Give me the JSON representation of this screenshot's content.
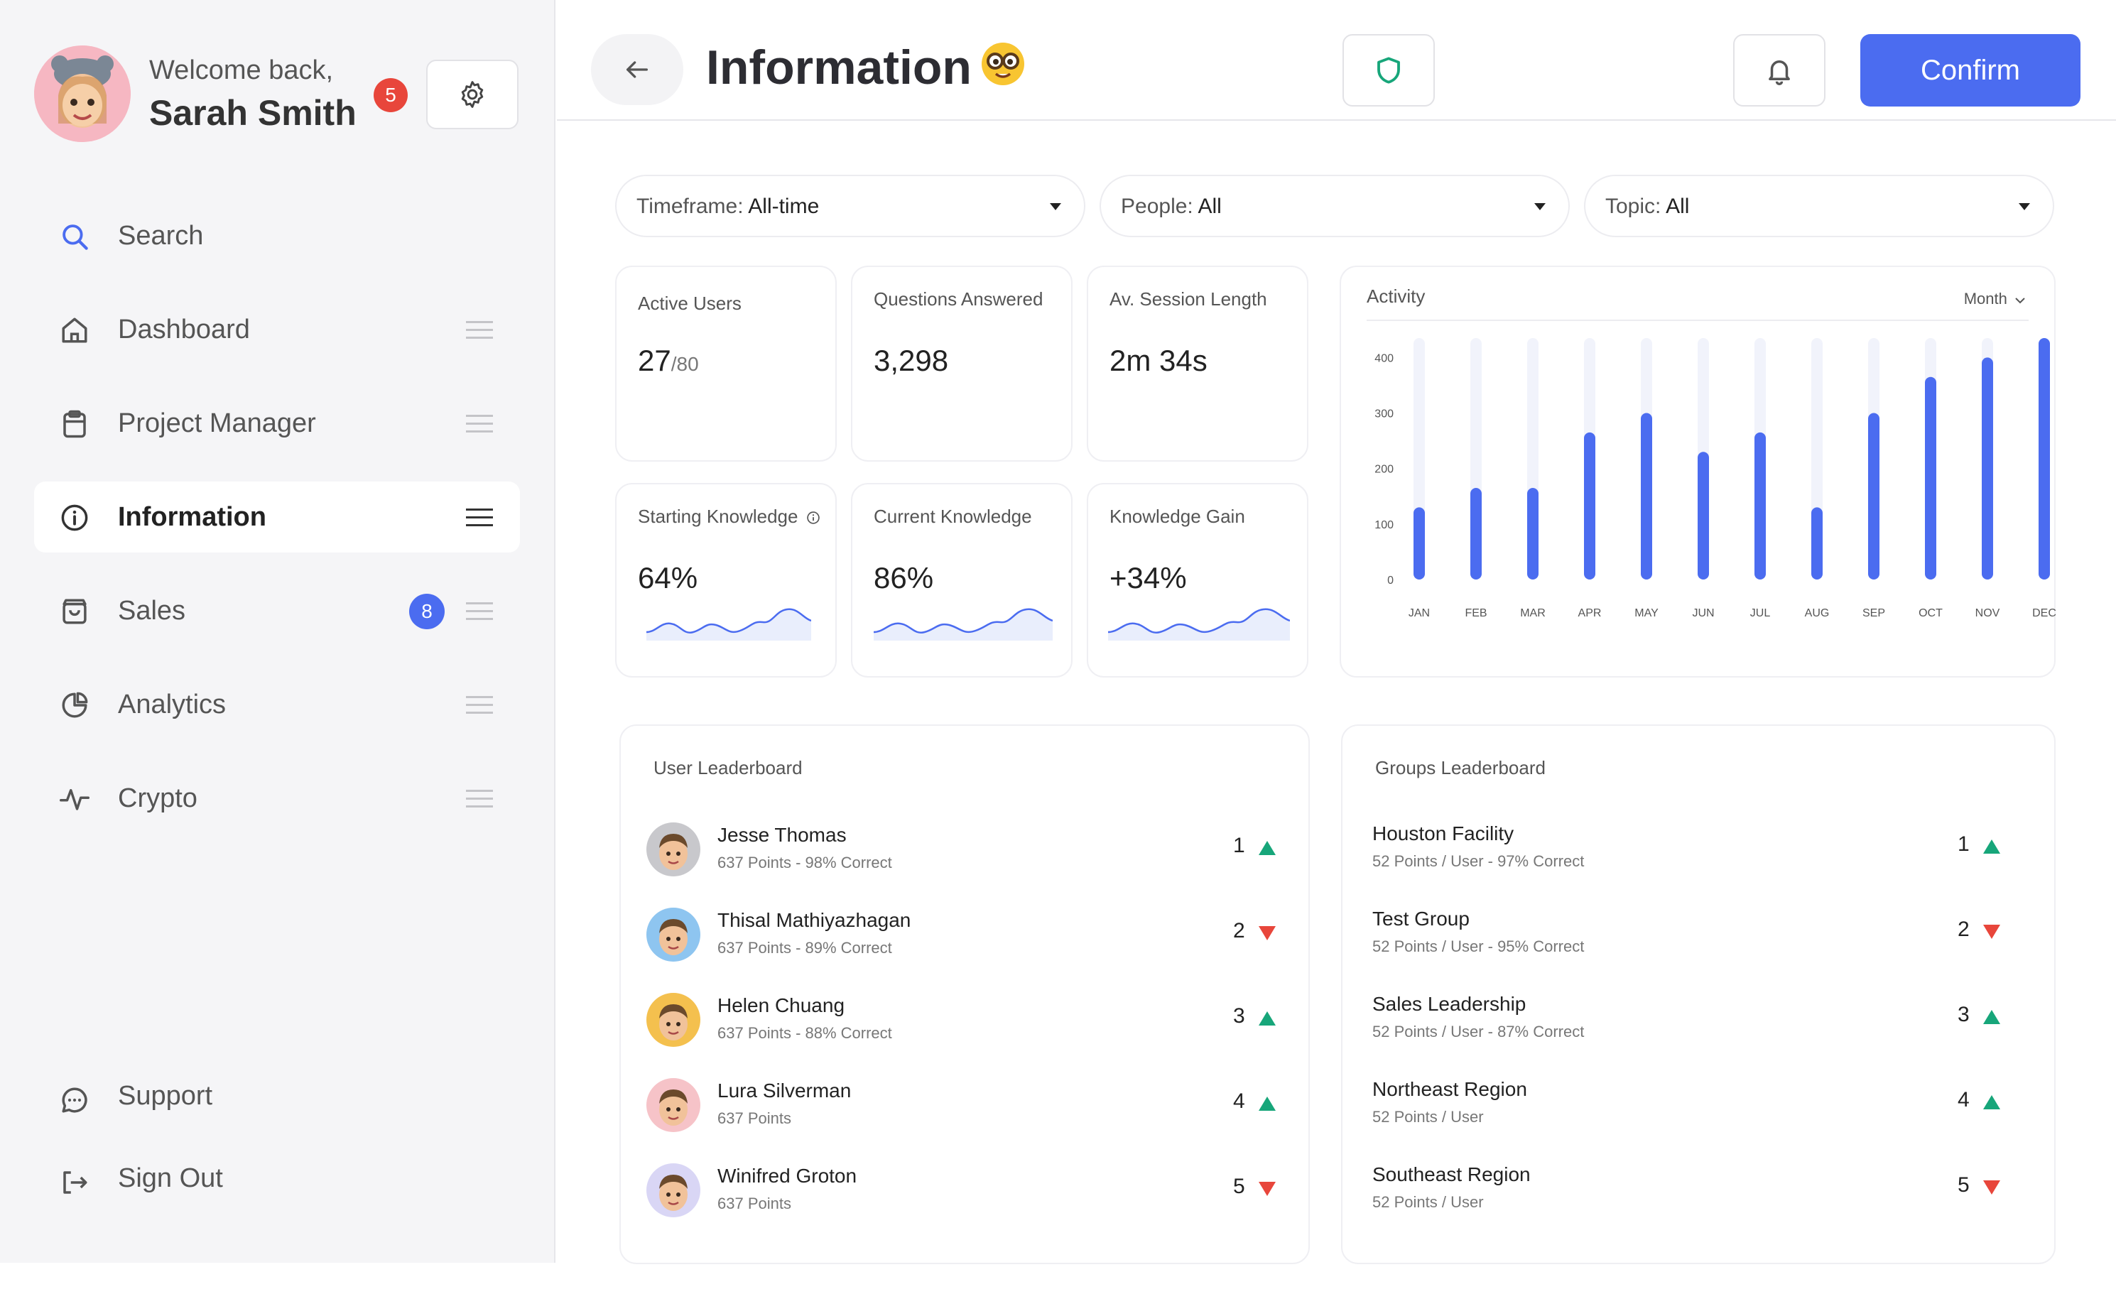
{
  "profile": {
    "welcome": "Welcome back,",
    "name": "Sarah Smith",
    "notification_count": "5"
  },
  "nav": {
    "items": [
      {
        "label": "Search",
        "icon": "search-icon"
      },
      {
        "label": "Dashboard",
        "icon": "home-icon"
      },
      {
        "label": "Project Manager",
        "icon": "clipboard-icon"
      },
      {
        "label": "Information",
        "icon": "info-icon",
        "active": true
      },
      {
        "label": "Sales",
        "icon": "shopping-bag-icon",
        "badge": "8"
      },
      {
        "label": "Analytics",
        "icon": "pie-chart-icon"
      },
      {
        "label": "Crypto",
        "icon": "activity-icon"
      }
    ],
    "bottom": [
      {
        "label": "Support",
        "icon": "chat-icon"
      },
      {
        "label": "Sign Out",
        "icon": "sign-out-icon"
      }
    ]
  },
  "header": {
    "title": "Information",
    "emoji": "nerd-face-emoji",
    "confirm_label": "Confirm"
  },
  "filters": [
    {
      "label": "Timeframe:",
      "value": "All-time"
    },
    {
      "label": "People:",
      "value": "All"
    },
    {
      "label": "Topic:",
      "value": "All"
    }
  ],
  "stats": {
    "active_users": {
      "label": "Active Users",
      "value": "27",
      "denominator": "/80"
    },
    "questions_answered": {
      "label": "Questions Answered",
      "value": "3,298"
    },
    "session_length": {
      "label": "Av. Session Length",
      "value": "2m 34s"
    },
    "starting_knowledge": {
      "label": "Starting Knowledge",
      "value": "64%"
    },
    "current_knowledge": {
      "label": "Current Knowledge",
      "value": "86%"
    },
    "knowledge_gain": {
      "label": "Knowledge Gain",
      "value": "+34%"
    }
  },
  "activity": {
    "title": "Activity",
    "range_label": "Month",
    "accent_color": "#4b6cf0",
    "track_color": "#f1f3fb"
  },
  "chart_data": {
    "type": "bar",
    "title": "Activity",
    "categories": [
      "JAN",
      "FEB",
      "MAR",
      "APR",
      "MAY",
      "JUN",
      "JUL",
      "AUG",
      "SEP",
      "OCT",
      "NOV",
      "DEC"
    ],
    "values": [
      130,
      165,
      165,
      265,
      300,
      230,
      265,
      130,
      300,
      365,
      400,
      435
    ],
    "yticks": [
      0,
      100,
      200,
      300,
      400
    ],
    "ylim": [
      0,
      435
    ],
    "grid": false,
    "legend": false
  },
  "user_leaderboard": {
    "title": "User Leaderboard",
    "rows": [
      {
        "name": "Jesse Thomas",
        "sub": "637 Points - 98% Correct",
        "rank": "1",
        "trend": "up",
        "avatar_color": "#c8c8cc"
      },
      {
        "name": "Thisal Mathiyazhagan",
        "sub": "637 Points - 89% Correct",
        "rank": "2",
        "trend": "down",
        "avatar_color": "#8ec5f0"
      },
      {
        "name": "Helen Chuang",
        "sub": "637 Points - 88% Correct",
        "rank": "3",
        "trend": "up",
        "avatar_color": "#f4c04e"
      },
      {
        "name": "Lura Silverman",
        "sub": "637 Points",
        "rank": "4",
        "trend": "up",
        "avatar_color": "#f6c3c8"
      },
      {
        "name": "Winifred Groton",
        "sub": "637 Points",
        "rank": "5",
        "trend": "down",
        "avatar_color": "#d9d6f5"
      }
    ]
  },
  "groups_leaderboard": {
    "title": "Groups Leaderboard",
    "rows": [
      {
        "name": "Houston Facility",
        "sub": "52 Points / User - 97% Correct",
        "rank": "1",
        "trend": "up"
      },
      {
        "name": "Test Group",
        "sub": "52 Points / User - 95% Correct",
        "rank": "2",
        "trend": "down"
      },
      {
        "name": "Sales Leadership",
        "sub": "52 Points / User -  87% Correct",
        "rank": "3",
        "trend": "up"
      },
      {
        "name": "Northeast Region",
        "sub": "52 Points / User",
        "rank": "4",
        "trend": "up"
      },
      {
        "name": "Southeast Region",
        "sub": "52 Points / User",
        "rank": "5",
        "trend": "down"
      }
    ]
  }
}
